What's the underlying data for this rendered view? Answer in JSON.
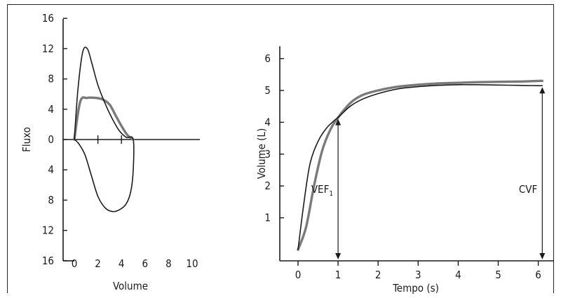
{
  "chart_data": [
    {
      "type": "line",
      "xlabel": "Volume",
      "ylabel": "Fluxo",
      "xticks": [
        "0",
        "2",
        "4",
        "6",
        "8",
        "10"
      ],
      "yticks_upper": [
        "16",
        "12",
        "8",
        "4",
        "0"
      ],
      "yticks_lower": [
        "4",
        "8",
        "12",
        "16"
      ],
      "xlim": [
        0,
        10
      ],
      "ylim": [
        -16,
        16
      ],
      "series": [
        {
          "style": "thin-dark",
          "x": [
            0.0,
            0.3,
            0.7,
            1.1,
            1.5,
            2.0,
            2.6,
            3.2,
            3.8,
            4.4,
            5.0,
            5.0,
            4.8,
            4.4,
            3.8,
            3.2,
            2.6,
            2.0,
            1.4,
            0.9,
            0.4,
            0.1,
            0.0
          ],
          "y": [
            0.0,
            6.5,
            11.5,
            12.0,
            10.0,
            7.2,
            4.8,
            2.8,
            1.2,
            0.3,
            0.0,
            -4.0,
            -6.8,
            -8.5,
            -9.3,
            -9.5,
            -9.0,
            -7.5,
            -4.5,
            -2.0,
            -0.6,
            -0.1,
            0.0
          ]
        },
        {
          "style": "thick-gray",
          "x": [
            0.0,
            0.5,
            1.1,
            1.8,
            2.4,
            3.0,
            3.5,
            4.0,
            4.5,
            5.0
          ],
          "y": [
            0.0,
            5.0,
            5.5,
            5.5,
            5.3,
            4.6,
            3.2,
            1.8,
            0.6,
            0.0
          ]
        }
      ]
    },
    {
      "type": "line",
      "xlabel": "Tempo (s)",
      "ylabel": "Volume (L)",
      "xticks": [
        "0",
        "1",
        "2",
        "3",
        "4",
        "5",
        "6"
      ],
      "yticks": [
        "1",
        "2",
        "3",
        "4",
        "5",
        "6"
      ],
      "xlim": [
        -0.25,
        6.25
      ],
      "ylim": [
        0,
        6.6
      ],
      "series": [
        {
          "style": "thin-dark",
          "x": [
            0.0,
            0.15,
            0.3,
            0.5,
            0.7,
            0.9,
            1.0,
            1.3,
            1.6,
            2.0,
            2.5,
            3.0,
            3.5,
            4.0,
            4.5,
            5.0,
            5.5,
            6.0,
            6.1
          ],
          "y": [
            0.0,
            1.5,
            2.7,
            3.4,
            3.8,
            4.05,
            4.15,
            4.5,
            4.72,
            4.9,
            5.05,
            5.12,
            5.16,
            5.18,
            5.18,
            5.17,
            5.16,
            5.15,
            5.15
          ]
        },
        {
          "style": "thick-gray",
          "x": [
            0.0,
            0.2,
            0.4,
            0.6,
            0.8,
            1.0,
            1.3,
            1.6,
            2.0,
            2.5,
            3.0,
            3.5,
            4.0,
            4.5,
            5.0,
            5.5,
            6.0,
            6.1
          ],
          "y": [
            0.0,
            0.7,
            2.0,
            3.1,
            3.75,
            4.15,
            4.6,
            4.85,
            5.0,
            5.12,
            5.18,
            5.22,
            5.24,
            5.26,
            5.27,
            5.28,
            5.3,
            5.3
          ]
        }
      ],
      "annotations": [
        {
          "label": "VEF",
          "subscript": "1",
          "x": 1.0,
          "y": 4.15
        },
        {
          "label": "CVF",
          "x": 6.1,
          "y": 5.15
        }
      ]
    }
  ]
}
